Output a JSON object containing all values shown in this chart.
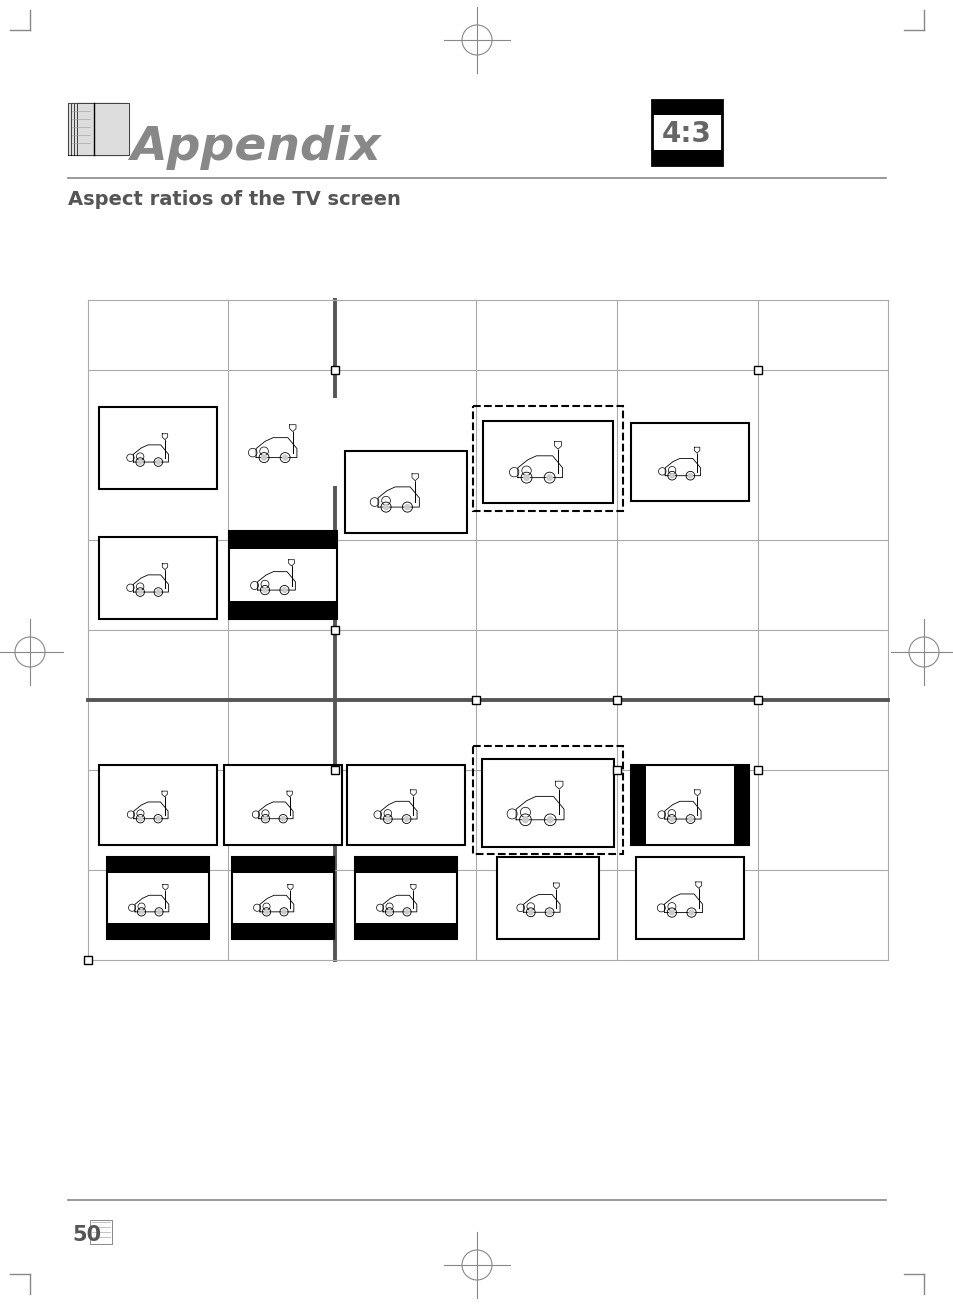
{
  "title": "Appendix",
  "subtitle": "Aspect ratios of the TV screen",
  "page_number": "50",
  "ratio_label": "4:3",
  "bg_color": "#ffffff",
  "grid_line_color": "#555555",
  "thin_line_color": "#aaaaaa",
  "text_color": "#555555"
}
